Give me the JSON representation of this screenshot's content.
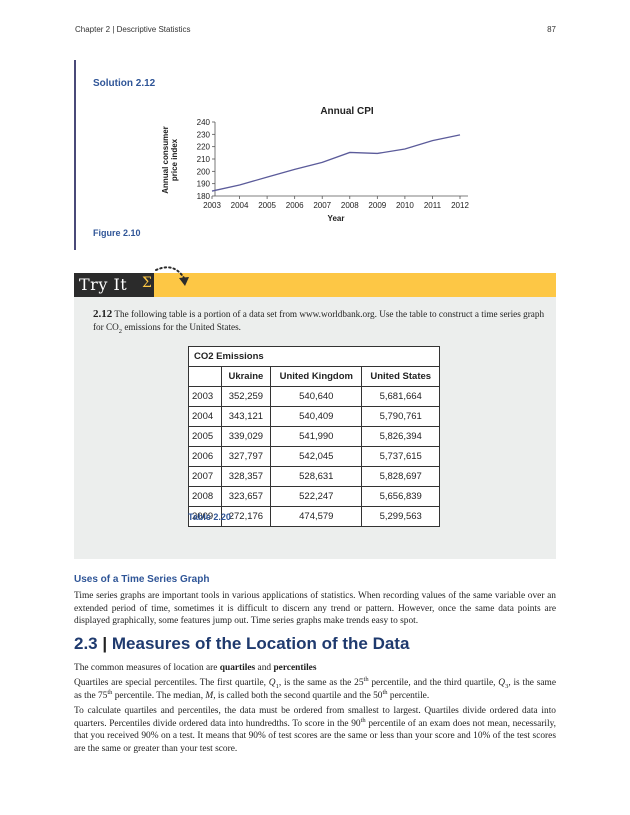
{
  "header": {
    "chapter": "Chapter 2 | Descriptive Statistics",
    "page_number": "87"
  },
  "solution": {
    "title": "Solution 2.12",
    "figure_caption": "Figure 2.10"
  },
  "chart_data": {
    "type": "line",
    "title": "Annual CPI",
    "xlabel": "Year",
    "ylabel": "Annual consumer price index",
    "x": [
      2003,
      2004,
      2005,
      2006,
      2007,
      2008,
      2009,
      2010,
      2011,
      2012
    ],
    "series": [
      {
        "values": [
          184.0,
          188.9,
          195.3,
          201.6,
          207.3,
          215.3,
          214.5,
          218.1,
          224.9,
          229.6
        ]
      }
    ],
    "ylim": [
      180,
      240
    ],
    "yticks": [
      180,
      190,
      200,
      210,
      220,
      230,
      240
    ],
    "grid": false,
    "line_color": "#5b5b9a"
  },
  "try_it": {
    "label": "Try It",
    "sigma": "Σ",
    "exercise_number": "2.12",
    "exercise_text_a": " The following table is a portion of a data set from www.worldbank.org. Use the table to construct a time series graph for CO",
    "exercise_sub": "2",
    "exercise_text_b": " emissions for the United States."
  },
  "table": {
    "title": "CO2 Emissions",
    "columns": [
      "",
      "Ukraine",
      "United Kingdom",
      "United States"
    ],
    "rows": [
      [
        "2003",
        "352,259",
        "540,640",
        "5,681,664"
      ],
      [
        "2004",
        "343,121",
        "540,409",
        "5,790,761"
      ],
      [
        "2005",
        "339,029",
        "541,990",
        "5,826,394"
      ],
      [
        "2006",
        "327,797",
        "542,045",
        "5,737,615"
      ],
      [
        "2007",
        "328,357",
        "528,631",
        "5,828,697"
      ],
      [
        "2008",
        "323,657",
        "522,247",
        "5,656,839"
      ],
      [
        "2009",
        "272,176",
        "474,579",
        "5,299,563"
      ]
    ],
    "caption": "Table 2.20"
  },
  "uses_section": {
    "heading": "Uses of a Time Series Graph",
    "text": "Time series graphs are important tools in various applications of statistics. When recording values of the same variable over an extended period of time, sometimes it is difficult to discern any trend or pattern. However, once the same data points are displayed graphically, some features jump out. Time series graphs make trends easy to spot."
  },
  "section_2_3": {
    "number": "2.3",
    "separator": "|",
    "title": "Measures of the Location of the Data",
    "p2_a": "The common measures of location are ",
    "p2_b": "quartiles",
    "p2_c": " and ",
    "p2_d": "percentiles",
    "p3_a": "Quartiles are special percentiles. The first quartile, ",
    "p3_q1": "Q",
    "p3_q1_sub": "1",
    "p3_b": ", is the same as the 25",
    "p3_th1": "th",
    "p3_c": " percentile, and the third quartile, ",
    "p3_q3": "Q",
    "p3_q3_sub": "3",
    "p3_d": ", is the same as the 75",
    "p3_th2": "th",
    "p3_e": " percentile. The median, ",
    "p3_m": "M",
    "p3_f": ", is called both the second quartile and the 50",
    "p3_th3": "th",
    "p3_g": " percentile.",
    "p4_a": "To calculate quartiles and percentiles, the data must be ordered from smallest to largest. Quartiles divide ordered data into quarters. Percentiles divide ordered data into hundredths. To score in the 90",
    "p4_th": "th",
    "p4_b": " percentile of an exam does not mean, necessarily, that you received 90% on a test. It means that 90% of test scores are the same or less than your score and 10% of the test scores are the same or greater than your test score."
  }
}
